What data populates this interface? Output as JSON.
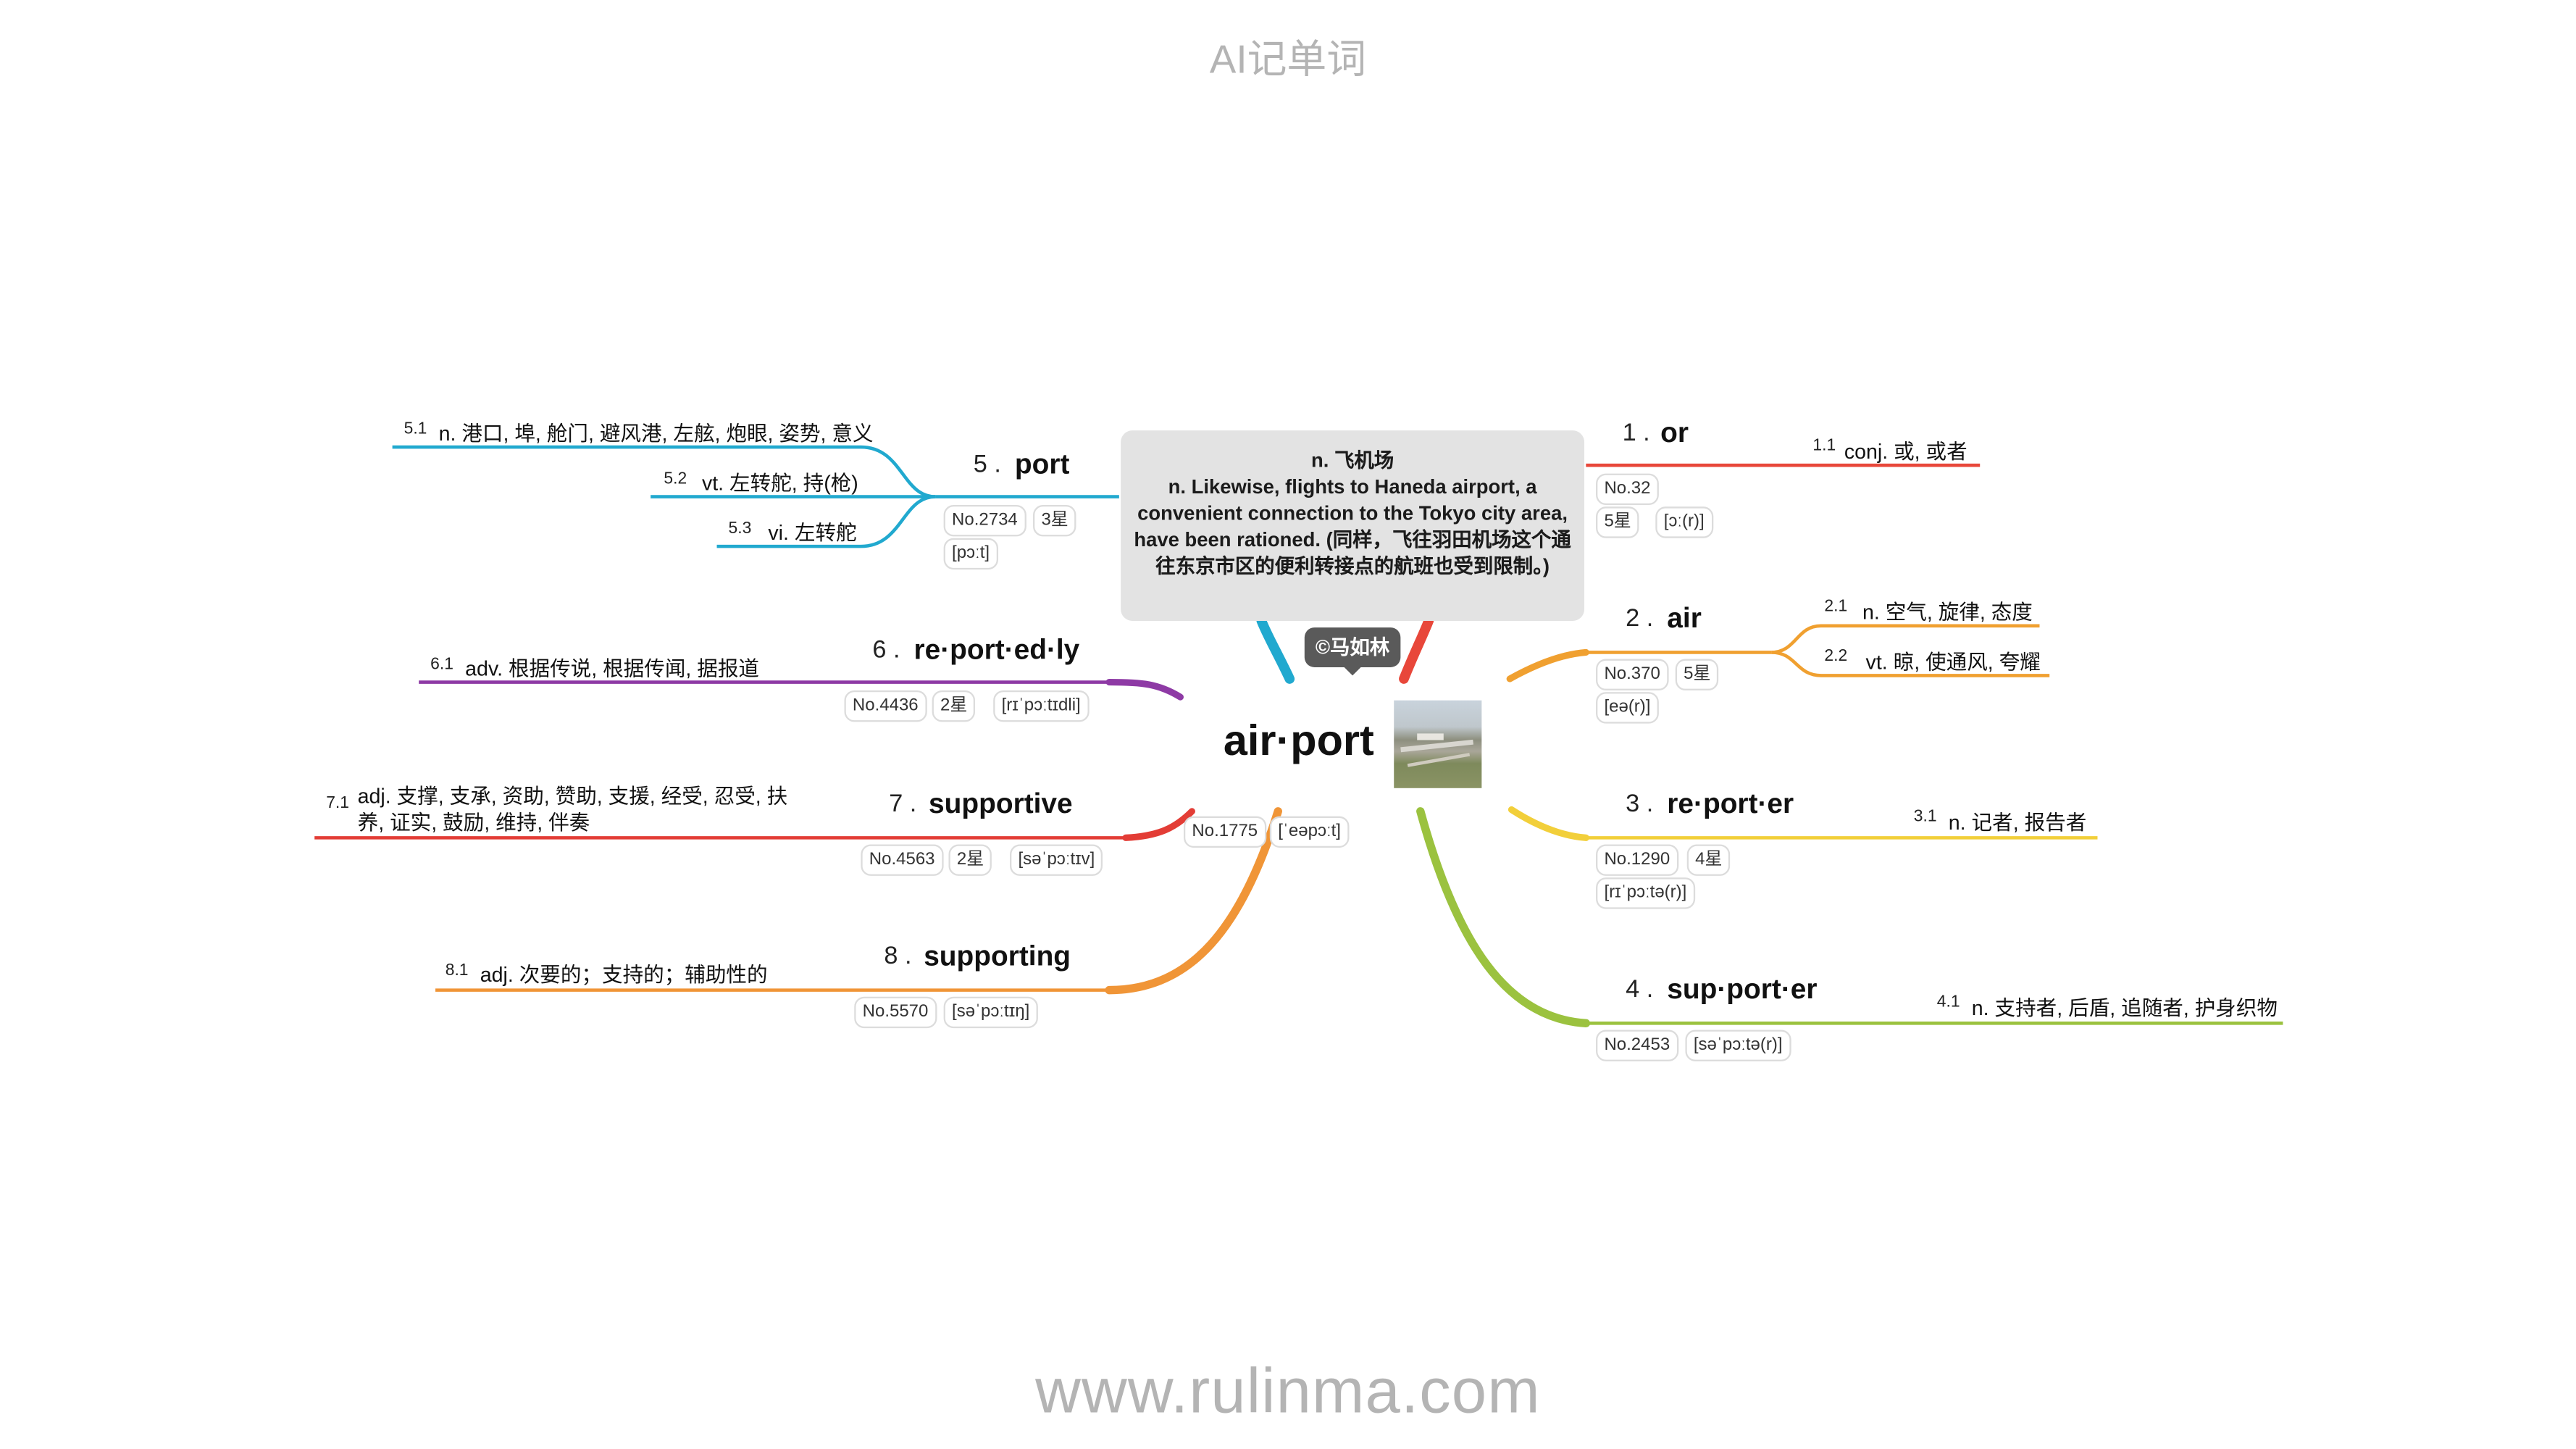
{
  "header": {
    "title": "AI记单词"
  },
  "footer": {
    "url": "www.rulinma.com"
  },
  "root": {
    "word": "air·port",
    "no": "No.1775",
    "phonetic": "[ˈeəpɔːt]",
    "copyright": "©马如林",
    "note": {
      "line1": "n. 飞机场",
      "line2": "n. Likewise, flights to Haneda airport, a convenient connection to the Tokyo city area, have been rationed. (同样，飞往羽田机场这个通往东京市区的便利转接点的航班也受到限制。)"
    }
  },
  "branches": [
    {
      "num": "1 .",
      "word": "or",
      "color": "#e8473a",
      "tags": [
        "No.32",
        "5星",
        "[ɔː(r)]"
      ],
      "subs": [
        {
          "num": "1.1",
          "text": "conj. 或, 或者"
        }
      ]
    },
    {
      "num": "2 .",
      "word": "air",
      "color": "#f0a030",
      "tags": [
        "No.370",
        "5星",
        "[eə(r)]"
      ],
      "subs": [
        {
          "num": "2.1",
          "text": "n. 空气, 旋律, 态度"
        },
        {
          "num": "2.2",
          "text": "vt. 晾, 使通风, 夸耀"
        }
      ]
    },
    {
      "num": "3 .",
      "word": "re·port·er",
      "color": "#f2cf3a",
      "tags": [
        "No.1290",
        "4星",
        "[rɪˈpɔːtə(r)]"
      ],
      "subs": [
        {
          "num": "3.1",
          "text": "n. 记者, 报告者"
        }
      ]
    },
    {
      "num": "4 .",
      "word": "sup·port·er",
      "color": "#9bc23f",
      "tags": [
        "No.2453",
        "[səˈpɔːtə(r)]"
      ],
      "subs": [
        {
          "num": "4.1",
          "text": "n. 支持者, 后盾, 追随者, 护身织物"
        }
      ]
    },
    {
      "num": "5 .",
      "word": "port",
      "color": "#21a9cf",
      "tags": [
        "No.2734",
        "3星",
        "[pɔːt]"
      ],
      "subs": [
        {
          "num": "5.1",
          "text": "n. 港口, 埠, 舱门, 避风港, 左舷, 炮眼, 姿势, 意义"
        },
        {
          "num": "5.2",
          "text": "vt. 左转舵, 持(枪)"
        },
        {
          "num": "5.3",
          "text": "vi. 左转舵"
        }
      ]
    },
    {
      "num": "6 .",
      "word": "re·port·ed·ly",
      "color": "#8e3aa5",
      "tags": [
        "No.4436",
        "2星",
        "[rɪˈpɔːtɪdli]"
      ],
      "subs": [
        {
          "num": "6.1",
          "text": "adv. 根据传说, 根据传闻, 据报道"
        }
      ]
    },
    {
      "num": "7 .",
      "word": "supportive",
      "color": "#e33d36",
      "tags": [
        "No.4563",
        "2星",
        "[səˈpɔːtɪv]"
      ],
      "subs": [
        {
          "num": "7.1",
          "text": "adj. 支撑, 支承, 资助, 赞助, 支援, 经受, 忍受, 扶",
          "text2": "养, 证实, 鼓励, 维持, 伴奏"
        }
      ]
    },
    {
      "num": "8 .",
      "word": "supporting",
      "color": "#f09537",
      "tags": [
        "No.5570",
        "[səˈpɔːtɪŋ]"
      ],
      "subs": [
        {
          "num": "8.1",
          "text": "adj. 次要的；支持的；辅助性的"
        }
      ]
    }
  ]
}
